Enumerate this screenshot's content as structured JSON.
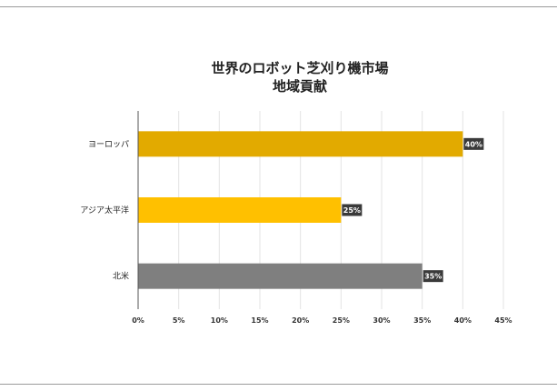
{
  "chart_data": {
    "type": "bar",
    "orientation": "horizontal",
    "title_lines": [
      "世界のロボット芝刈り機市場",
      "地域貢献"
    ],
    "categories": [
      "ヨーロッパ",
      "アジア太平洋",
      "北米"
    ],
    "values": [
      40,
      25,
      35
    ],
    "data_labels": [
      "40%",
      "25%",
      "35%"
    ],
    "bar_colors": [
      "#e2aa00",
      "#ffc000",
      "#7f7f7f"
    ],
    "x_ticks": [
      "0%",
      "5%",
      "10%",
      "15%",
      "20%",
      "25%",
      "30%",
      "35%",
      "40%",
      "45%"
    ],
    "xlim": [
      0,
      45
    ],
    "grid": true,
    "legend": "none"
  }
}
